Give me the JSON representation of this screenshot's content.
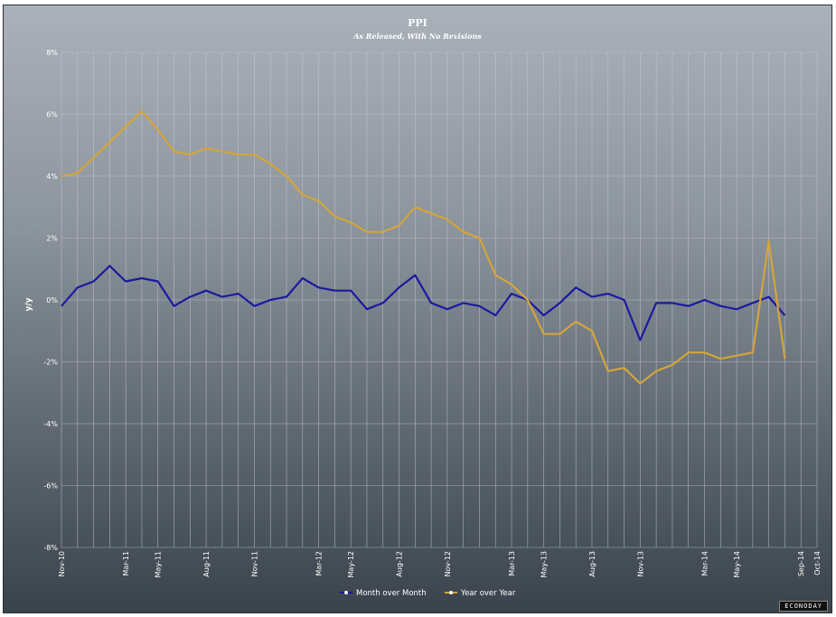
{
  "chart_data": {
    "type": "line",
    "title": "PPI",
    "subtitle": "As Released, With No Revisions",
    "ylabel": "y/y",
    "ylim": [
      -8,
      8
    ],
    "y_ticks": [
      "8%",
      "6%",
      "4%",
      "2%",
      "0%",
      "-2%",
      "-4%",
      "-6%",
      "-8%"
    ],
    "x_tick_labels": [
      "Nov-10",
      "Mar-11",
      "May-11",
      "Aug-11",
      "Nov-11",
      "Mar-12",
      "May-12",
      "Aug-12",
      "Nov-12",
      "Mar-13",
      "May-13",
      "Aug-13",
      "Nov-13",
      "Mar-14",
      "May-14",
      "Sep-14",
      "Oct-14"
    ],
    "categories": [
      "Nov-10",
      "Dec-10",
      "Jan-11",
      "Feb-11",
      "Mar-11",
      "Apr-11",
      "May-11",
      "Jun-11",
      "Jul-11",
      "Aug-11",
      "Sep-11",
      "Oct-11",
      "Nov-11",
      "Dec-11",
      "Jan-12",
      "Feb-12",
      "Mar-12",
      "Apr-12",
      "May-12",
      "Jun-12",
      "Jul-12",
      "Aug-12",
      "Sep-12",
      "Oct-12",
      "Nov-12",
      "Dec-12",
      "Jan-13",
      "Feb-13",
      "Mar-13",
      "Apr-13",
      "May-13",
      "Jun-13",
      "Jul-13",
      "Aug-13",
      "Sep-13",
      "Oct-13",
      "Nov-13",
      "Dec-13",
      "Jan-14",
      "Feb-14",
      "Mar-14",
      "Apr-14",
      "May-14",
      "Jun-14",
      "Jul-14",
      "Aug-14",
      "Sep-14"
    ],
    "series": [
      {
        "name": "Month over Month",
        "color": "#1a1aa0",
        "values": [
          -0.2,
          0.4,
          0.6,
          1.1,
          0.6,
          0.7,
          0.6,
          -0.2,
          0.1,
          0.3,
          0.1,
          0.2,
          -0.2,
          0.0,
          0.1,
          0.7,
          0.4,
          0.3,
          0.3,
          -0.3,
          -0.1,
          0.4,
          0.8,
          -0.1,
          -0.3,
          -0.1,
          -0.2,
          -0.5,
          0.2,
          0.0,
          -0.5,
          -0.1,
          0.4,
          0.1,
          0.2,
          0.0,
          -1.3,
          -0.1,
          -0.1,
          -0.2,
          0.0,
          -0.2,
          -0.3,
          -0.1,
          0.1,
          -0.5,
          null
        ]
      },
      {
        "name": "Year over Year",
        "color": "#d4a53a",
        "values": [
          4.0,
          4.1,
          4.6,
          5.1,
          5.6,
          6.1,
          5.5,
          4.8,
          4.7,
          4.9,
          4.8,
          4.7,
          4.7,
          4.4,
          4.0,
          3.4,
          3.2,
          2.7,
          2.5,
          2.2,
          2.2,
          2.4,
          3.0,
          2.8,
          2.6,
          2.2,
          2.0,
          0.8,
          0.5,
          0.0,
          -1.1,
          -1.1,
          -0.7,
          -1.0,
          -2.3,
          -2.2,
          -2.7,
          -2.3,
          -2.1,
          -1.7,
          -1.7,
          -1.9,
          -1.8,
          -1.7,
          1.9,
          -1.9,
          null
        ]
      }
    ],
    "legend_position": "bottom",
    "grid": true,
    "watermark": "ECONODAY"
  }
}
